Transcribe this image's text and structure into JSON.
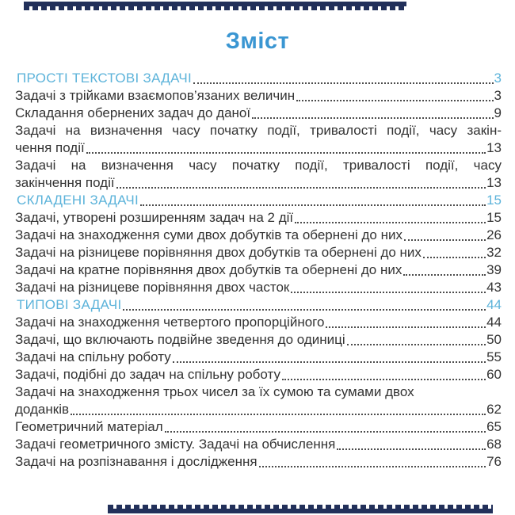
{
  "title": "Зміст",
  "colors": {
    "title_blue": "#3a96d2",
    "section_blue": "#5cb3da",
    "text": "#333333",
    "leader_dots": "#4c4c4c",
    "decor_navy": "#22305a"
  },
  "decor": {
    "top_border": "navy-ornament-band",
    "bottom_border": "navy-ornament-band"
  },
  "toc": {
    "entries": [
      {
        "type": "section",
        "lines": [
          "ПРОСТІ ТЕКСТОВІ ЗАДАЧІ"
        ],
        "page": "3"
      },
      {
        "type": "item",
        "lines": [
          "Задачі з трійками взаємопов’язаних величин"
        ],
        "page": "3"
      },
      {
        "type": "item",
        "lines": [
          "Складання обернених задач до даної"
        ],
        "page": "9"
      },
      {
        "type": "item",
        "justify_first_line": true,
        "lines": [
          "Задачі на визначення часу початку події, тривалості події, часу закін-",
          "чення події"
        ],
        "page": "13"
      },
      {
        "type": "item",
        "justify_first_line": true,
        "lines": [
          "Задачі на визначення часу початку події, тривалості події, часу",
          "закінчення події"
        ],
        "page": "13"
      },
      {
        "type": "section",
        "lines": [
          "СКЛАДЕНІ ЗАДАЧІ"
        ],
        "page": "15"
      },
      {
        "type": "item",
        "lines": [
          "Задачі, утворені розширенням задач на 2 дії"
        ],
        "page": "15"
      },
      {
        "type": "item",
        "lines": [
          "Задачі на знаходження суми двох добутків та обернені до них"
        ],
        "page": "26"
      },
      {
        "type": "item",
        "lines": [
          "Задачі на різницеве порівняння двох добутків та обернені до них"
        ],
        "page": "32"
      },
      {
        "type": "item",
        "lines": [
          "Задачі на кратне порівняння двох добутків та обернені до них"
        ],
        "page": "39"
      },
      {
        "type": "item",
        "lines": [
          "Задачі на різницеве порівняння двох часток"
        ],
        "page": "43"
      },
      {
        "type": "section",
        "lines": [
          "ТИПОВІ ЗАДАЧІ"
        ],
        "page": "44"
      },
      {
        "type": "item",
        "lines": [
          "Задачі на знаходження четвертого пропорційного"
        ],
        "page": "44"
      },
      {
        "type": "item",
        "lines": [
          "Задачі, що включають подвійне зведення до одиниці"
        ],
        "page": "50"
      },
      {
        "type": "item",
        "lines": [
          "Задачі на спільну роботу"
        ],
        "page": "55"
      },
      {
        "type": "item",
        "lines": [
          "Задачі, подібні до задач на спільну роботу"
        ],
        "page": "60"
      },
      {
        "type": "item",
        "lines": [
          "Задачі на знаходження трьох чисел за їх сумою та сумами двох",
          "доданків"
        ],
        "page": "62"
      },
      {
        "type": "item",
        "lines": [
          "Геометричний матеріал"
        ],
        "page": "65"
      },
      {
        "type": "item",
        "lines": [
          "Задачі геометричного змісту. Задачі на обчислення"
        ],
        "page": "68"
      },
      {
        "type": "item",
        "lines": [
          "Задачі на розпізнавання і дослідження"
        ],
        "page": "76"
      }
    ]
  }
}
